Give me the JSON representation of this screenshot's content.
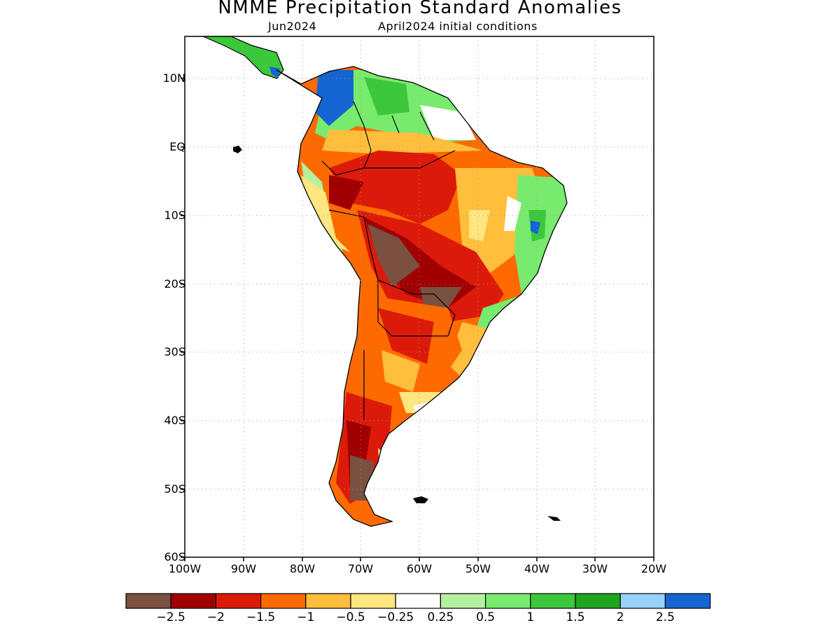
{
  "title": "NMME Precipitation Standard Anomalies",
  "subtitle_left": "Jun2024",
  "subtitle_right": "April2024 initial conditions",
  "lat_labels": [
    "10N",
    "EQ",
    "10S",
    "20S",
    "30S",
    "40S",
    "50S",
    "60S"
  ],
  "lon_labels": [
    "100W",
    "90W",
    "80W",
    "70W",
    "60W",
    "50W",
    "40W",
    "30W",
    "20W"
  ],
  "colorbar": {
    "colors": [
      "#7a5040",
      "#a00000",
      "#dc1a0a",
      "#ff6a00",
      "#ffbe3c",
      "#ffe680",
      "#ffffff",
      "#b4f0a0",
      "#78eb6e",
      "#3cc83c",
      "#1ea51e",
      "#96d2fa",
      "#1464d2"
    ],
    "labels": [
      "−2.5",
      "−2",
      "−1.5",
      "−1",
      "−0.5",
      "−0.25",
      "0.25",
      "0.5",
      "1",
      "1.5",
      "2",
      "2.5"
    ]
  }
}
